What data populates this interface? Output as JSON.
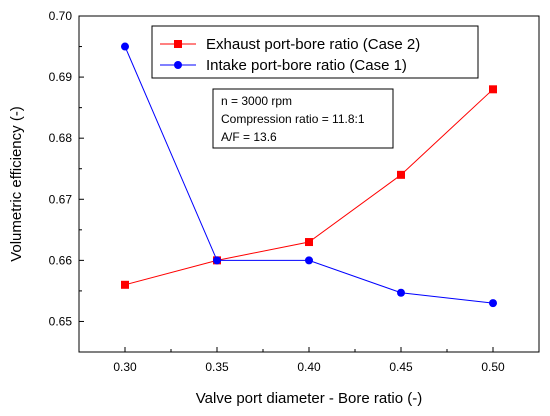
{
  "chart_data": {
    "type": "line",
    "xlabel": "Valve port diameter - Bore ratio (-)",
    "ylabel": "Volumetric efficiency (-)",
    "xlim": [
      0.275,
      0.525
    ],
    "ylim": [
      0.645,
      0.7
    ],
    "xticks": [
      "0.30",
      "0.35",
      "0.40",
      "0.45",
      "0.50"
    ],
    "yticks": [
      "0.65",
      "0.66",
      "0.67",
      "0.68",
      "0.69",
      "0.70"
    ],
    "legend_position": "top-center",
    "series": [
      {
        "name": "Exhaust port-bore ratio (Case 2)",
        "color": "#ff0000",
        "marker": "square",
        "x": [
          0.3,
          0.35,
          0.4,
          0.45,
          0.5
        ],
        "y": [
          0.656,
          0.66,
          0.663,
          0.674,
          0.688
        ]
      },
      {
        "name": "Intake port-bore ratio (Case 1)",
        "color": "#0000ff",
        "marker": "circle",
        "x": [
          0.3,
          0.35,
          0.4,
          0.45,
          0.5
        ],
        "y": [
          0.695,
          0.66,
          0.66,
          0.6547,
          0.653
        ]
      }
    ],
    "annotations": [
      "n = 3000 rpm",
      "Compression ratio = 11.8:1",
      "A/F = 13.6"
    ]
  }
}
